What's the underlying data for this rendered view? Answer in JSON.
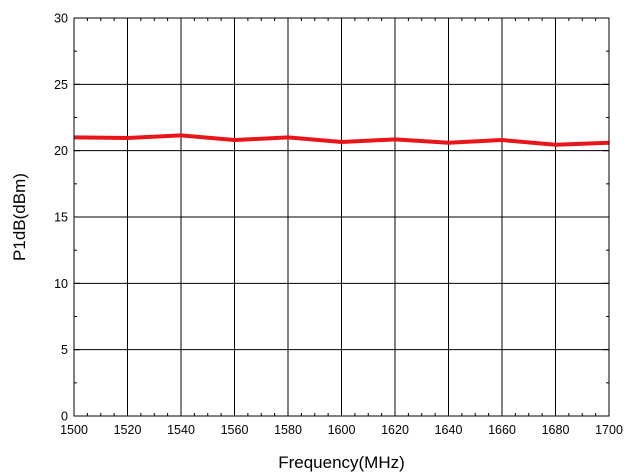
{
  "chart_data": {
    "type": "line",
    "xlabel": "Frequency(MHz)",
    "ylabel": "P1dB(dBm)",
    "xlim": [
      1500,
      1700
    ],
    "ylim": [
      0,
      30
    ],
    "x_ticks": [
      1500,
      1520,
      1540,
      1560,
      1580,
      1600,
      1620,
      1640,
      1660,
      1680,
      1700
    ],
    "y_ticks": [
      0,
      5,
      10,
      15,
      20,
      25,
      30
    ],
    "x_tick_labels": [
      "1500",
      "1520",
      "1540",
      "1560",
      "1580",
      "1600",
      "1620",
      "1640",
      "1660",
      "1680",
      "1700"
    ],
    "y_tick_labels": [
      "0",
      "5",
      "10",
      "15",
      "20",
      "25",
      "30"
    ],
    "grid": true,
    "legend": "none",
    "series": [
      {
        "color": "#e8161b",
        "x": [
          1500,
          1520,
          1540,
          1560,
          1580,
          1600,
          1620,
          1640,
          1660,
          1680,
          1700
        ],
        "y": [
          21.0,
          20.95,
          21.15,
          20.8,
          21.0,
          20.65,
          20.85,
          20.6,
          20.8,
          20.45,
          20.6
        ]
      }
    ]
  }
}
